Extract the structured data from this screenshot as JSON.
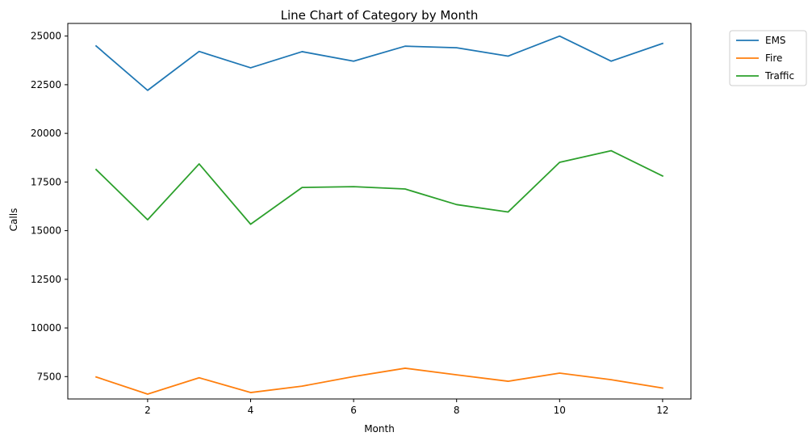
{
  "chart_data": {
    "type": "line",
    "title": "Line Chart of Category by Month",
    "xlabel": "Month",
    "ylabel": "Calls",
    "x": [
      1,
      2,
      3,
      4,
      5,
      6,
      7,
      8,
      9,
      10,
      11,
      12
    ],
    "xlim": [
      0.45,
      12.55
    ],
    "ylim": [
      6350,
      25650
    ],
    "xticks": [
      2,
      4,
      6,
      8,
      10,
      12
    ],
    "yticks": [
      7500,
      10000,
      12500,
      15000,
      17500,
      20000,
      22500,
      25000
    ],
    "grid": false,
    "legend_position": "outside-top-right",
    "series": [
      {
        "name": "EMS",
        "color": "#1f77b4",
        "values": [
          24490,
          22210,
          24210,
          23370,
          24200,
          23710,
          24480,
          24400,
          23970,
          25000,
          23710,
          24620
        ]
      },
      {
        "name": "Fire",
        "color": "#ff7f0e",
        "values": [
          7480,
          6600,
          7440,
          6680,
          7010,
          7500,
          7930,
          7590,
          7260,
          7680,
          7340,
          6910
        ]
      },
      {
        "name": "Traffic",
        "color": "#2ca02c",
        "values": [
          18140,
          15560,
          18430,
          15330,
          17220,
          17260,
          17140,
          16340,
          15960,
          18510,
          19110,
          17810
        ]
      }
    ]
  }
}
